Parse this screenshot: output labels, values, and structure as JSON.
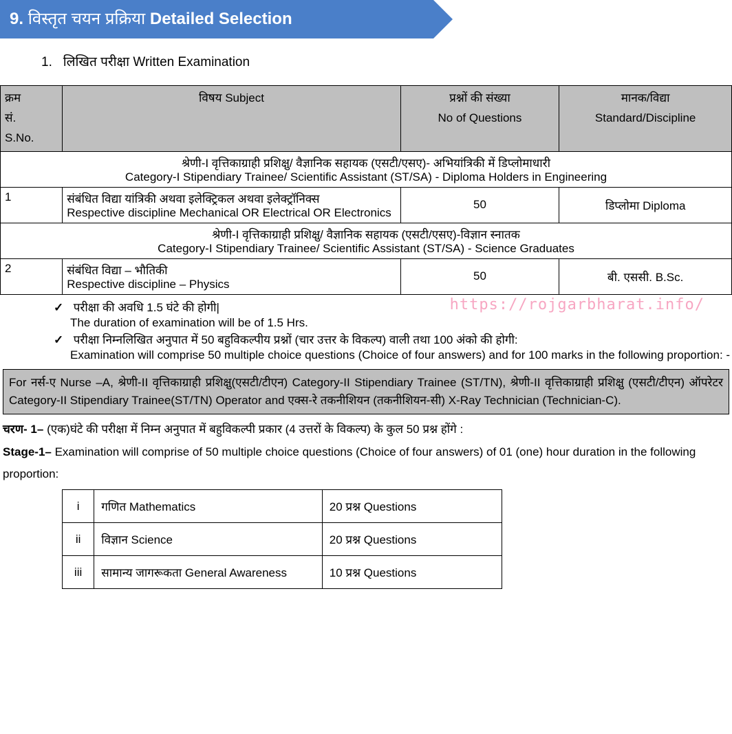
{
  "banner": {
    "number": "9.",
    "hindi": "विस्तृत चयन प्रक्रिया",
    "english": "Detailed Selection"
  },
  "item1": {
    "num": "1.",
    "hi": "लिखित परीक्षा",
    "en": "Written Examination"
  },
  "table1": {
    "headers": {
      "sno": {
        "hi1": "क्रम",
        "hi2": "सं.",
        "en": "S.No."
      },
      "subject": {
        "hi": "विषय",
        "en": "Subject"
      },
      "questions": {
        "hi": "प्रश्नों की संख्या",
        "en": "No of Questions"
      },
      "standard": {
        "hi": "मानक/विद्या",
        "en": "Standard/Discipline"
      }
    },
    "cat1": {
      "hi": "श्रेणी-I वृत्तिकाग्राही प्रशिक्षु/ वैज्ञानिक सहायक (एसटी/एसए)- अभियांत्रिकी में डिप्लोमाधारी",
      "en": "Category-I Stipendiary Trainee/ Scientific Assistant (ST/SA) - Diploma Holders in Engineering"
    },
    "row1": {
      "sno": "1",
      "subj_hi": "संबंधित विद्या यांत्रिकी अथवा इलेक्ट्रिकल अथवा इलेक्ट्रॉनिक्स",
      "subj_en": "Respective discipline Mechanical OR Electrical OR Electronics",
      "qn": "50",
      "std": "डिप्लोमा Diploma"
    },
    "cat2": {
      "hi": "श्रेणी-I वृत्तिकाग्राही प्रशिक्षु/ वैज्ञानिक सहायक (एसटी/एसए)-विज्ञान स्नातक",
      "en": "Category-I Stipendiary Trainee/ Scientific Assistant (ST/SA) - Science Graduates"
    },
    "row2": {
      "sno": "2",
      "subj_hi": "संबंधित विद्या – भौतिकी",
      "subj_en": "Respective discipline – Physics",
      "qn": "50",
      "std": "बी. एससी. B.Sc."
    }
  },
  "watermark": "https://rojgarbharat.info/",
  "bullets": {
    "b1_hi": "परीक्षा की अवधि 1.5 घंटे की होगी|",
    "b1_en": "The duration of examination will be of 1.5 Hrs.",
    "b2_hi": "परीक्षा निम्नलिखित अनुपात में 50 बहुविकल्पीय प्रश्नों (चार उत्तर के विकल्प) वाली तथा 100 अंको की होगी:",
    "b2_en": "Examination will comprise 50 multiple choice questions (Choice of four answers) and for 100 marks in the following proportion: -"
  },
  "notebox": "For नर्स-ए Nurse –A, श्रेणी-II वृत्तिकाग्राही प्रशिक्षु(एसटी/टीएन) Category-II Stipendiary Trainee (ST/TN),  श्रेणी-II वृत्तिकाग्राही प्रशिक्षु (एसटी/टीएन) ऑपरेटर Category-II Stipendiary Trainee(ST/TN) Operator and एक्स-रे तकनीशियन (तकनीशियन-सी) X-Ray Technician  (Technician-C).",
  "stage": {
    "line1_b": "चरण- 1–",
    "line1": " (एक)घंटे की परीक्षा में निम्न अनुपात में बहुविकल्पी प्रकार (4 उत्तरों के विकल्प) के कुल 50 प्रश्न होंगे :",
    "line2_b": "Stage-1–",
    "line2": " Examination will comprise of 50 multiple choice questions (Choice of four answers) of 01 (one) hour duration in the following proportion:"
  },
  "table2": {
    "r1": {
      "n": "i",
      "s": "गणित Mathematics",
      "q": "20 प्रश्न Questions"
    },
    "r2": {
      "n": "ii",
      "s": "विज्ञान Science",
      "q": "20 प्रश्न Questions"
    },
    "r3": {
      "n": "iii",
      "s": "सामान्य जागरूकता General Awareness",
      "q": "10 प्रश्न Questions"
    }
  }
}
